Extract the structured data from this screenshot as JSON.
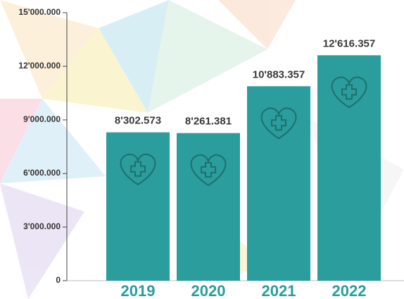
{
  "chart_data": {
    "type": "bar",
    "categories": [
      "2019",
      "2020",
      "2021",
      "2022"
    ],
    "values": [
      8302573,
      8261381,
      10883357,
      12616357
    ],
    "value_labels": [
      "8'302.573",
      "8'261.381",
      "10'883.357",
      "12'616.357"
    ],
    "color": "#2a9d9c",
    "ylim": [
      0,
      15000000
    ],
    "yticks": [
      {
        "value": 0,
        "label": "0"
      },
      {
        "value": 3000000,
        "label": "3'000.000"
      },
      {
        "value": 6000000,
        "label": "6'000.000"
      },
      {
        "value": 9000000,
        "label": "9'000.000"
      },
      {
        "value": 12000000,
        "label": "12'000.000"
      },
      {
        "value": 15000000,
        "label": "15'000.000"
      }
    ]
  }
}
